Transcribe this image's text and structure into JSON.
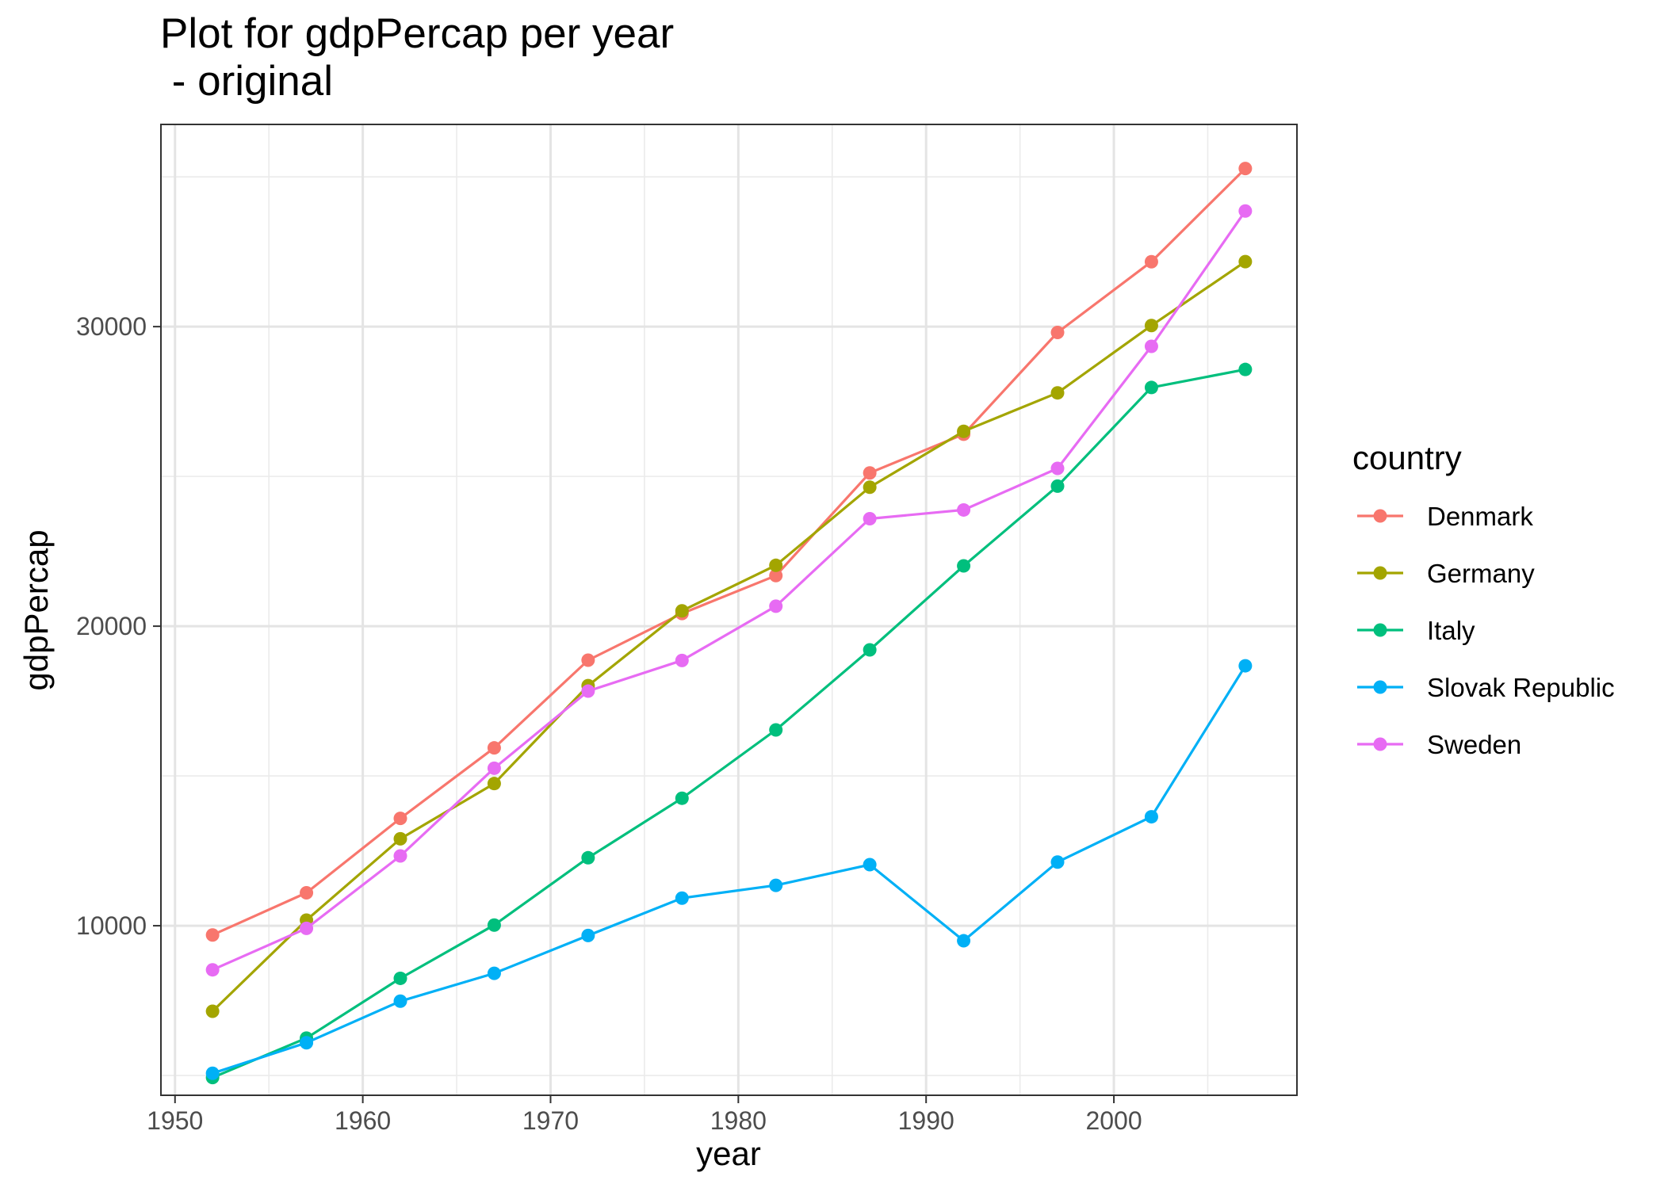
{
  "chart_data": {
    "type": "line",
    "title": "Plot for gdpPercap per year",
    "subtitle": " - original",
    "xlabel": "year",
    "ylabel": "gdpPercap",
    "x": [
      1952,
      1957,
      1962,
      1967,
      1972,
      1977,
      1982,
      1987,
      1992,
      1997,
      2002,
      2007
    ],
    "xlim": [
      1949.25,
      2009.75
    ],
    "ylim": [
      4340,
      36750
    ],
    "x_ticks": [
      "1950",
      "1960",
      "1970",
      "1980",
      "1990",
      "2000"
    ],
    "y_ticks": [
      "10000",
      "20000",
      "30000"
    ],
    "grid": true,
    "legend": {
      "title": "country",
      "position": "right"
    },
    "series": [
      {
        "name": "Denmark",
        "color": "#F8766D",
        "values": [
          9692,
          11100,
          13583,
          15937,
          18866,
          20423,
          21688,
          25116,
          26407,
          29804,
          32167,
          35278
        ]
      },
      {
        "name": "Germany",
        "color": "#A3A500",
        "values": [
          7144,
          10188,
          12902,
          14746,
          18016,
          20513,
          22032,
          24639,
          26505,
          27789,
          30036,
          32170
        ]
      },
      {
        "name": "Italy",
        "color": "#00BF7D",
        "values": [
          4931,
          6249,
          8244,
          10022,
          12269,
          14256,
          16537,
          19208,
          22014,
          24675,
          27968,
          28570
        ]
      },
      {
        "name": "Slovak Republic",
        "color": "#00B0F6",
        "values": [
          5074,
          6093,
          7481,
          8412,
          9674,
          10922,
          11348,
          12038,
          9498,
          12126,
          13638,
          18678
        ]
      },
      {
        "name": "Sweden",
        "color": "#E76BF3",
        "values": [
          8528,
          9912,
          12329,
          15258,
          17832,
          18856,
          20667,
          23587,
          23880,
          25267,
          29342,
          33860
        ]
      }
    ]
  }
}
